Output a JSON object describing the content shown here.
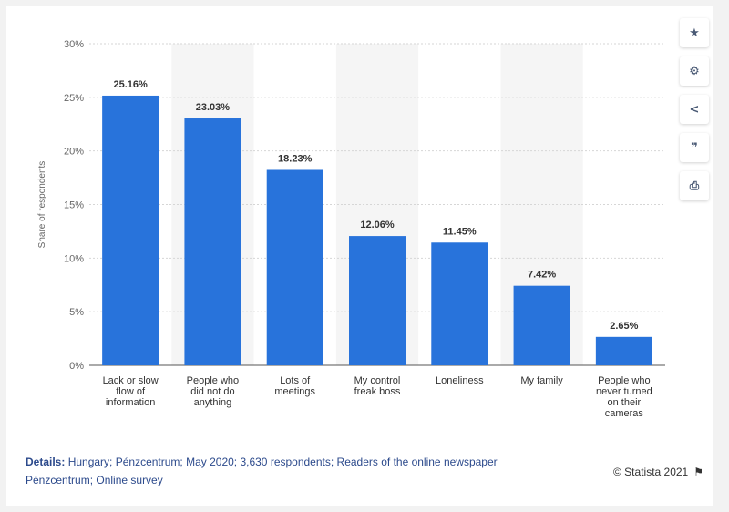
{
  "chart_data": {
    "type": "bar",
    "categories": [
      [
        "Lack or slow",
        "flow of",
        "information"
      ],
      [
        "People who",
        "did not do",
        "anything"
      ],
      [
        "Lots of",
        "meetings"
      ],
      [
        "My control",
        "freak boss"
      ],
      [
        "Loneliness"
      ],
      [
        "My family"
      ],
      [
        "People who",
        "never turned",
        "on their",
        "cameras"
      ]
    ],
    "values": [
      25.16,
      23.03,
      18.23,
      12.06,
      11.45,
      7.42,
      2.65
    ],
    "value_labels": [
      "25.16%",
      "23.03%",
      "18.23%",
      "12.06%",
      "11.45%",
      "7.42%",
      "2.65%"
    ],
    "ylabel": "Share of respondents",
    "ylim": [
      0,
      30
    ],
    "yticks": [
      0,
      5,
      10,
      15,
      20,
      25,
      30
    ],
    "ytick_labels": [
      "0%",
      "5%",
      "10%",
      "15%",
      "20%",
      "25%",
      "30%"
    ],
    "bar_color": "#2873db",
    "alt_band_color": "#f5f5f5",
    "grid": true
  },
  "toolbar": {
    "buttons": [
      {
        "name": "star-icon",
        "glyph": "★"
      },
      {
        "name": "gear-icon",
        "glyph": "⚙"
      },
      {
        "name": "share-icon",
        "glyph": "<"
      },
      {
        "name": "quote-icon",
        "glyph": "❞"
      },
      {
        "name": "print-icon",
        "glyph": "⎙"
      }
    ]
  },
  "footer": {
    "details_label": "Details:",
    "details_text": " Hungary; Pénzcentrum; May 2020; 3,630 respondents; Readers of the online newspaper Pénzcentrum; Online survey",
    "credit": "© Statista 2021",
    "flag_glyph": "⚑"
  }
}
